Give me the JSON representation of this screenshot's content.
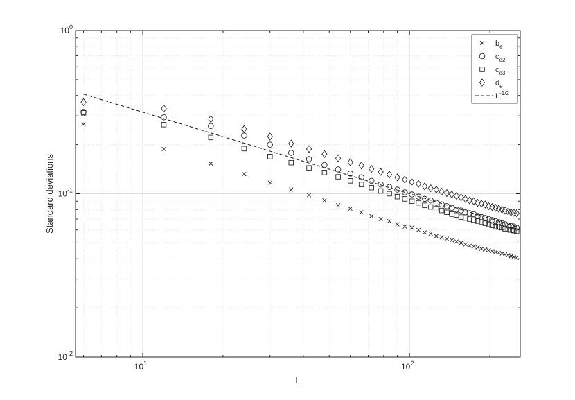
{
  "chart_data": {
    "type": "scatter",
    "xlabel": "L",
    "ylabel": "Standard deviations",
    "xscale": "log",
    "yscale": "log",
    "xlim": [
      5.6,
      260
    ],
    "ylim": [
      0.01,
      1
    ],
    "grid": true,
    "minor_grid": true,
    "legend_position": "top-right",
    "x_ticks": [
      {
        "value": 10,
        "base": "10",
        "exp": "1"
      },
      {
        "value": 100,
        "base": "10",
        "exp": "2"
      }
    ],
    "y_ticks": [
      {
        "value": 0.01,
        "base": "10",
        "exp": "-2"
      },
      {
        "value": 0.1,
        "base": "10",
        "exp": "-1"
      },
      {
        "value": 1,
        "base": "10",
        "exp": "0"
      }
    ],
    "series": [
      {
        "legend_base": "b",
        "legend_sub": "e",
        "marker": "cross",
        "x": [
          6,
          12,
          18,
          24,
          30,
          36,
          42,
          48,
          54,
          60,
          66,
          72,
          78,
          84,
          90,
          96,
          102,
          108,
          114,
          120,
          126,
          132,
          138,
          144,
          150,
          156,
          162,
          168,
          174,
          180,
          186,
          192,
          198,
          204,
          210,
          216,
          222,
          228,
          234,
          240,
          246,
          252
        ],
        "y": [
          0.266,
          0.188,
          0.153,
          0.132,
          0.117,
          0.106,
          0.098,
          0.091,
          0.085,
          0.081,
          0.077,
          0.073,
          0.07,
          0.068,
          0.065,
          0.063,
          0.062,
          0.06,
          0.058,
          0.057,
          0.055,
          0.054,
          0.053,
          0.052,
          0.051,
          0.05,
          0.049,
          0.048,
          0.0475,
          0.047,
          0.046,
          0.0455,
          0.045,
          0.0445,
          0.044,
          0.0435,
          0.043,
          0.0425,
          0.042,
          0.0415,
          0.041,
          0.0405
        ]
      },
      {
        "legend_base": "c",
        "legend_sub": "e2",
        "marker": "circle",
        "x": [
          6,
          12,
          18,
          24,
          30,
          36,
          42,
          48,
          54,
          60,
          66,
          72,
          78,
          84,
          90,
          96,
          102,
          108,
          114,
          120,
          126,
          132,
          138,
          144,
          150,
          156,
          162,
          168,
          174,
          180,
          186,
          192,
          198,
          204,
          210,
          216,
          222,
          228,
          234,
          240,
          246,
          252
        ],
        "y": [
          0.317,
          0.294,
          0.26,
          0.227,
          0.2,
          0.178,
          0.163,
          0.15,
          0.141,
          0.133,
          0.126,
          0.12,
          0.114,
          0.11,
          0.106,
          0.102,
          0.099,
          0.096,
          0.093,
          0.091,
          0.088,
          0.086,
          0.084,
          0.082,
          0.08,
          0.079,
          0.077,
          0.076,
          0.075,
          0.073,
          0.072,
          0.071,
          0.07,
          0.069,
          0.068,
          0.067,
          0.066,
          0.065,
          0.064,
          0.0635,
          0.063,
          0.062
        ]
      },
      {
        "legend_base": "c",
        "legend_sub": "e3",
        "marker": "square",
        "x": [
          6,
          12,
          18,
          24,
          30,
          36,
          42,
          48,
          54,
          60,
          66,
          72,
          78,
          84,
          90,
          96,
          102,
          108,
          114,
          120,
          126,
          132,
          138,
          144,
          150,
          156,
          162,
          168,
          174,
          180,
          186,
          192,
          198,
          204,
          210,
          216,
          222,
          228,
          234,
          240,
          246,
          252
        ],
        "y": [
          0.313,
          0.265,
          0.221,
          0.189,
          0.169,
          0.155,
          0.144,
          0.135,
          0.127,
          0.12,
          0.114,
          0.109,
          0.104,
          0.1,
          0.096,
          0.093,
          0.09,
          0.088,
          0.085,
          0.083,
          0.081,
          0.079,
          0.077,
          0.075,
          0.074,
          0.072,
          0.071,
          0.07,
          0.069,
          0.068,
          0.067,
          0.066,
          0.065,
          0.064,
          0.063,
          0.0625,
          0.062,
          0.061,
          0.0605,
          0.06,
          0.0595,
          0.059
        ]
      },
      {
        "legend_base": "d",
        "legend_sub": "e",
        "marker": "diamond",
        "x": [
          6,
          12,
          18,
          24,
          30,
          36,
          42,
          48,
          54,
          60,
          66,
          72,
          78,
          84,
          90,
          96,
          102,
          108,
          114,
          120,
          126,
          132,
          138,
          144,
          150,
          156,
          162,
          168,
          174,
          180,
          186,
          192,
          198,
          204,
          210,
          216,
          222,
          228,
          234,
          240,
          246,
          252
        ],
        "y": [
          0.364,
          0.333,
          0.287,
          0.249,
          0.224,
          0.203,
          0.188,
          0.175,
          0.165,
          0.156,
          0.149,
          0.142,
          0.136,
          0.131,
          0.126,
          0.122,
          0.118,
          0.115,
          0.111,
          0.108,
          0.106,
          0.103,
          0.101,
          0.099,
          0.097,
          0.095,
          0.093,
          0.091,
          0.09,
          0.088,
          0.087,
          0.086,
          0.084,
          0.083,
          0.082,
          0.081,
          0.08,
          0.079,
          0.078,
          0.077,
          0.0765,
          0.076
        ]
      }
    ],
    "reference_line": {
      "legend_base": "L",
      "legend_exp": "-1/2",
      "style": "dashed",
      "x": [
        6,
        252
      ],
      "y": [
        0.408,
        0.063
      ]
    }
  }
}
